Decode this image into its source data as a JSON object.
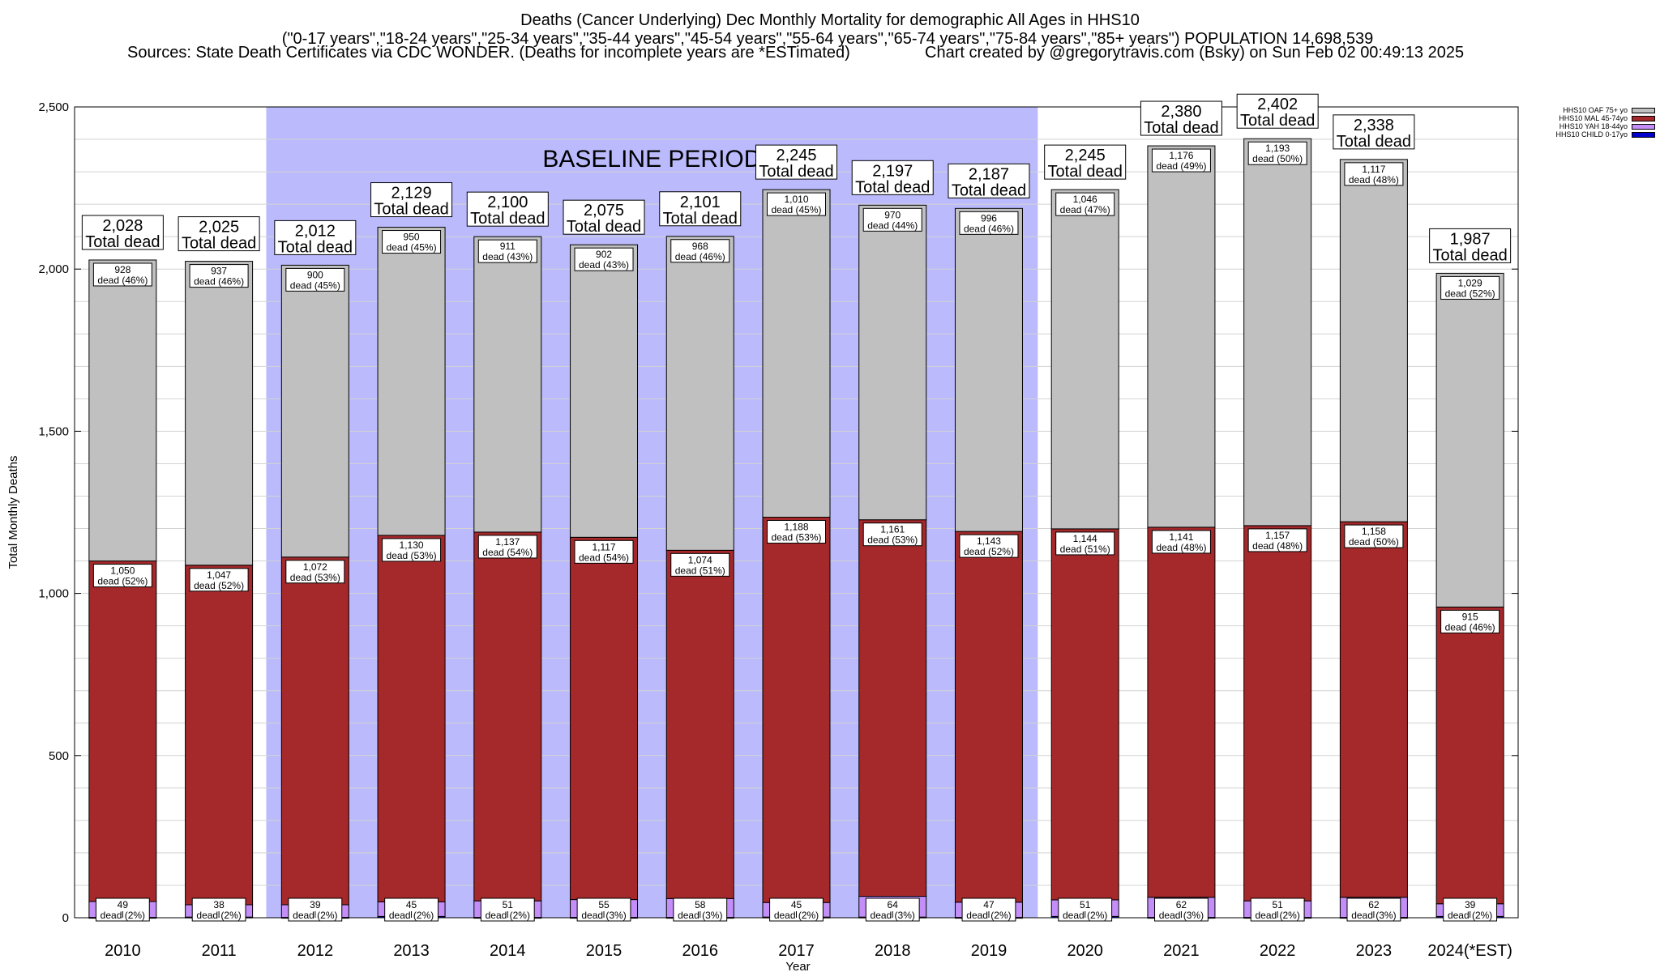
{
  "title": {
    "line1": "Deaths (Cancer Underlying) Dec Monthly Mortality for demographic All Ages in HHS10",
    "line2": "(\"0-17 years\",\"18-24 years\",\"25-34 years\",\"35-44 years\",\"45-54 years\",\"55-64 years\",\"65-74 years\",\"75-84 years\",\"85+ years\") POPULATION 14,698,539",
    "sources": "Sources: State Death Certificates via CDC WONDER. (Deaths for incomplete years are *ESTimated)",
    "credit": "Chart created by @gregorytravis.com (Bsky) on Sun Feb 02 00:49:13 2025"
  },
  "chart_data": {
    "type": "bar",
    "stacked": true,
    "xlabel": "Year",
    "ylabel": "Total Monthly Deaths",
    "ylim": [
      0,
      2500
    ],
    "yticks": [
      0,
      500,
      1000,
      1500,
      2000,
      2500
    ],
    "ytick_labels": [
      "0",
      "500",
      "1,000",
      "1,500",
      "2,000",
      "2,500"
    ],
    "grid": true,
    "legend_position": "top-right",
    "categories": [
      "2010",
      "2011",
      "2012",
      "2013",
      "2014",
      "2015",
      "2016",
      "2017",
      "2018",
      "2019",
      "2020",
      "2021",
      "2022",
      "2023",
      "2024(*EST)"
    ],
    "baseline_period": {
      "label": "BASELINE PERIOD",
      "from": "2012",
      "to": "2019"
    },
    "totals": [
      2028,
      2025,
      2012,
      2129,
      2100,
      2075,
      2101,
      2245,
      2197,
      2187,
      2245,
      2380,
      2402,
      2338,
      1987
    ],
    "totals_labels": [
      "2,028",
      "2,025",
      "2,012",
      "2,129",
      "2,100",
      "2,075",
      "2,101",
      "2,245",
      "2,197",
      "2,187",
      "2,245",
      "2,380",
      "2,402",
      "2,338",
      "1,987"
    ],
    "total_suffix": "Total dead",
    "series": [
      {
        "name": "HHS10 CHILD 0-17yo",
        "color": "#0000cc",
        "values": [
          1,
          2,
          1,
          4,
          1,
          1,
          1,
          2,
          2,
          1,
          4,
          1,
          1,
          1,
          4
        ]
      },
      {
        "name": "HHS10 YAH 18-44yo",
        "color": "#c38ef7",
        "values": [
          49,
          38,
          39,
          45,
          51,
          55,
          58,
          45,
          64,
          47,
          51,
          62,
          51,
          62,
          39
        ],
        "labels": [
          "49",
          "38",
          "39",
          "45",
          "51",
          "55",
          "58",
          "45",
          "64",
          "47",
          "51",
          "62",
          "51",
          "62",
          "39"
        ],
        "pcts": [
          "dead (2%)",
          "dead (2%)",
          "dead (2%)",
          "dead (2%)",
          "dead (2%)",
          "dead (3%)",
          "dead (3%)",
          "dead (2%)",
          "dead (3%)",
          "dead (2%)",
          "dead (2%)",
          "dead (3%)",
          "dead (2%)",
          "dead (3%)",
          "dead (2%)"
        ]
      },
      {
        "name": "HHS10 MAL 45-74yo",
        "color": "#a5282a",
        "values": [
          1050,
          1047,
          1072,
          1130,
          1137,
          1117,
          1074,
          1188,
          1161,
          1143,
          1144,
          1141,
          1157,
          1158,
          915
        ],
        "labels": [
          "1,050",
          "1,047",
          "1,072",
          "1,130",
          "1,137",
          "1,117",
          "1,074",
          "1,188",
          "1,161",
          "1,143",
          "1,144",
          "1,141",
          "1,157",
          "1,158",
          "915"
        ],
        "pcts": [
          "dead (52%)",
          "dead (52%)",
          "dead (53%)",
          "dead (53%)",
          "dead (54%)",
          "dead (54%)",
          "dead (51%)",
          "dead (53%)",
          "dead (53%)",
          "dead (52%)",
          "dead (51%)",
          "dead (48%)",
          "dead (48%)",
          "dead (50%)",
          "dead (46%)"
        ]
      },
      {
        "name": "HHS10 OAF 75+ yo",
        "color": "#c0c0c0",
        "values": [
          928,
          937,
          900,
          950,
          911,
          902,
          968,
          1010,
          970,
          996,
          1046,
          1176,
          1193,
          1117,
          1029
        ],
        "labels": [
          "928",
          "937",
          "900",
          "950",
          "911",
          "902",
          "968",
          "1,010",
          "970",
          "996",
          "1,046",
          "1,176",
          "1,193",
          "1,117",
          "1,029"
        ],
        "pcts": [
          "dead (46%)",
          "dead (46%)",
          "dead (45%)",
          "dead (45%)",
          "dead (43%)",
          "dead (43%)",
          "dead (46%)",
          "dead (45%)",
          "dead (44%)",
          "dead (46%)",
          "dead (47%)",
          "dead (49%)",
          "dead (50%)",
          "dead (48%)",
          "dead (52%)"
        ]
      }
    ]
  }
}
